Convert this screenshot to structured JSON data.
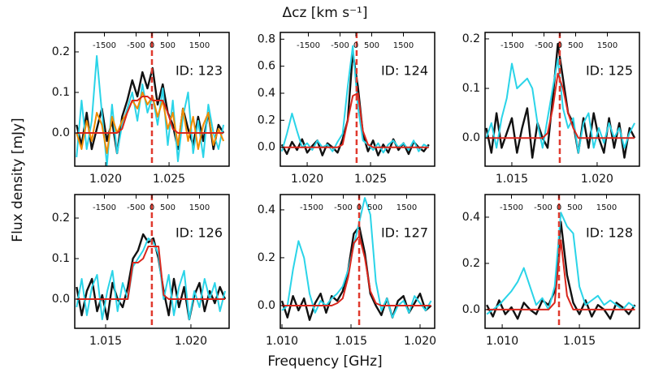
{
  "top_label": "Δcz [km s⁻¹]",
  "y_label": "Flux density [mJy]",
  "x_label": "Frequency [GHz]",
  "chart_data": [
    {
      "type": "line",
      "annotation": "ID: 123",
      "x": [
        1.0177,
        1.0181,
        1.0185,
        1.0189,
        1.0193,
        1.0197,
        1.0201,
        1.0205,
        1.0209,
        1.0213,
        1.0217,
        1.0221,
        1.0225,
        1.0229,
        1.0233,
        1.0237,
        1.0241,
        1.0245,
        1.0249,
        1.0253,
        1.0257,
        1.0261,
        1.0265,
        1.0269,
        1.0273,
        1.0277,
        1.0281,
        1.0285,
        1.0289,
        1.0293
      ],
      "series": [
        {
          "color": "#111111",
          "values": [
            0.02,
            -0.03,
            0.05,
            -0.04,
            0.01,
            0.06,
            -0.02,
            0.03,
            -0.05,
            0.04,
            0.08,
            0.13,
            0.09,
            0.15,
            0.11,
            0.16,
            0.07,
            0.12,
            0.05,
            0.02,
            -0.04,
            0.06,
            0.01,
            -0.03,
            0.04,
            -0.02,
            0.05,
            -0.04,
            0.02,
            0.0
          ]
        },
        {
          "color": "#2ad4e8",
          "values": [
            -0.06,
            0.08,
            -0.04,
            0.03,
            0.19,
            0.05,
            -0.08,
            0.07,
            -0.05,
            0.02,
            0.06,
            0.1,
            0.03,
            0.12,
            0.05,
            0.09,
            0.02,
            0.11,
            -0.03,
            0.08,
            -0.07,
            0.04,
            0.1,
            -0.05,
            0.03,
            -0.06,
            0.07,
            0.0,
            -0.04,
            0.02
          ]
        },
        {
          "color": "#f08c00",
          "values": [
            0.0,
            -0.04,
            0.03,
            -0.02,
            0.05,
            0.02,
            -0.05,
            0.04,
            0.0,
            0.03,
            0.05,
            0.08,
            0.06,
            0.1,
            0.07,
            0.09,
            0.04,
            0.08,
            0.01,
            0.05,
            -0.03,
            0.06,
            -0.02,
            0.04,
            -0.04,
            0.02,
            0.05,
            -0.03,
            0.01,
            -0.02
          ]
        },
        {
          "color": "#d9261c",
          "values": [
            0,
            0,
            0,
            0,
            0,
            0,
            0,
            0,
            0,
            0.01,
            0.05,
            0.08,
            0.08,
            0.09,
            0.09,
            0.08,
            0.08,
            0.08,
            0.05,
            0.01,
            0,
            0,
            0,
            0,
            0,
            0,
            0,
            0,
            0,
            0
          ]
        }
      ],
      "xlim": [
        1.01756,
        1.02974
      ],
      "xticks": [
        {
          "value": 1.02,
          "label": "1.020"
        },
        {
          "value": 1.025,
          "label": "1.025"
        }
      ],
      "ylim": [
        -0.082,
        0.248
      ],
      "yticks": [
        {
          "value": 0,
          "label": "0.0"
        },
        {
          "value": 0.1,
          "label": "0.1"
        },
        {
          "value": 0.2,
          "label": "0.2"
        }
      ],
      "x2lim": [
        -2436,
        2436
      ],
      "x2ticks": [
        -1500,
        -500,
        0,
        500,
        1500
      ],
      "vline": 1.02365
    },
    {
      "type": "line",
      "annotation": "ID: 124",
      "x": [
        1.018,
        1.0184,
        1.0188,
        1.0192,
        1.0196,
        1.02,
        1.0204,
        1.0208,
        1.0212,
        1.0216,
        1.022,
        1.0224,
        1.0228,
        1.0232,
        1.0236,
        1.024,
        1.0244,
        1.0248,
        1.0252,
        1.0256,
        1.026,
        1.0264,
        1.0268,
        1.0272,
        1.0276,
        1.028,
        1.0284,
        1.0288,
        1.0292,
        1.0296
      ],
      "series": [
        {
          "color": "#111111",
          "values": [
            0.02,
            -0.05,
            0.04,
            -0.02,
            0.06,
            -0.04,
            0.01,
            0.05,
            -0.06,
            0.03,
            0.0,
            -0.04,
            0.06,
            0.2,
            0.7,
            0.45,
            0.1,
            -0.03,
            0.05,
            -0.06,
            0.02,
            -0.04,
            0.06,
            -0.02,
            0.03,
            -0.05,
            0.04,
            0.0,
            -0.03,
            0.02
          ]
        },
        {
          "color": "#2ad4e8",
          "values": [
            -0.03,
            0.1,
            0.25,
            0.12,
            0.0,
            0.03,
            -0.02,
            0.05,
            0.0,
            0.02,
            -0.03,
            0.04,
            0.1,
            0.45,
            0.75,
            0.3,
            0.05,
            0.02,
            -0.02,
            0.03,
            -0.04,
            0.02,
            0.05,
            0.0,
            0.03,
            -0.02,
            0.05,
            -0.03,
            0.02,
            0.0
          ]
        },
        {
          "color": "#d9261c",
          "values": [
            0,
            0,
            0,
            0,
            0,
            0,
            0,
            0,
            0,
            0,
            0,
            0,
            0.02,
            0.2,
            0.38,
            0.4,
            0.12,
            0.02,
            0,
            0,
            0,
            0,
            0,
            0,
            0,
            0,
            0,
            0,
            0,
            0
          ]
        }
      ],
      "xlim": [
        1.01788,
        1.03006
      ],
      "xticks": [
        {
          "value": 1.02,
          "label": "1.020"
        },
        {
          "value": 1.025,
          "label": "1.025"
        }
      ],
      "ylim": [
        -0.14,
        0.85
      ],
      "yticks": [
        {
          "value": 0,
          "label": "0.0"
        },
        {
          "value": 0.2,
          "label": "0.2"
        },
        {
          "value": 0.4,
          "label": "0.4"
        },
        {
          "value": 0.6,
          "label": "0.6"
        },
        {
          "value": 0.8,
          "label": "0.8"
        }
      ],
      "x2lim": [
        -2385,
        2487
      ],
      "x2ticks": [
        -1500,
        -500,
        0,
        500,
        1500
      ],
      "vline": 1.0239
    },
    {
      "type": "line",
      "annotation": "ID: 125",
      "x": [
        1.0135,
        1.0138,
        1.0141,
        1.0144,
        1.0147,
        1.015,
        1.0153,
        1.0156,
        1.0159,
        1.0162,
        1.0165,
        1.0168,
        1.0171,
        1.0174,
        1.0177,
        1.018,
        1.0183,
        1.0186,
        1.0189,
        1.0192,
        1.0195,
        1.0198,
        1.0201,
        1.0204,
        1.0207,
        1.021,
        1.0213,
        1.0216,
        1.0219,
        1.0222
      ],
      "series": [
        {
          "color": "#111111",
          "values": [
            0.02,
            -0.03,
            0.05,
            -0.02,
            0.01,
            0.04,
            -0.03,
            0.02,
            0.06,
            -0.04,
            0.03,
            0.0,
            -0.02,
            0.08,
            0.19,
            0.12,
            0.05,
            0.03,
            -0.03,
            0.04,
            -0.02,
            0.05,
            0.0,
            -0.03,
            0.04,
            -0.02,
            0.03,
            -0.04,
            0.02,
            0.0
          ]
        },
        {
          "color": "#2ad4e8",
          "values": [
            0.0,
            0.03,
            -0.02,
            0.04,
            0.08,
            0.15,
            0.1,
            0.11,
            0.12,
            0.1,
            0.03,
            -0.02,
            0.04,
            0.1,
            0.16,
            0.06,
            0.02,
            0.04,
            -0.03,
            0.03,
            0.05,
            -0.02,
            0.02,
            -0.01,
            0.03,
            0.0,
            0.02,
            -0.02,
            0.01,
            0.03
          ]
        },
        {
          "color": "#d9261c",
          "values": [
            0,
            0,
            0,
            0,
            0,
            0,
            0,
            0,
            0,
            0,
            0,
            0,
            0.01,
            0.06,
            0.13,
            0.1,
            0.05,
            0.02,
            0,
            0,
            0,
            0,
            0,
            0,
            0,
            0,
            0,
            0,
            0,
            0
          ]
        }
      ],
      "xlim": [
        1.01343,
        1.02248
      ],
      "xticks": [
        {
          "value": 1.015,
          "label": "1.015"
        },
        {
          "value": 1.02,
          "label": "1.020"
        }
      ],
      "ylim": [
        -0.057,
        0.213
      ],
      "yticks": [
        {
          "value": 0,
          "label": "0.0"
        },
        {
          "value": 0.1,
          "label": "0.1"
        },
        {
          "value": 0.2,
          "label": "0.2"
        }
      ],
      "x2lim": [
        -2359,
        2513
      ],
      "x2ticks": [
        -1500,
        -500,
        0,
        500,
        1500
      ],
      "vline": 1.01781
    },
    {
      "type": "line",
      "annotation": "ID: 126",
      "x": [
        1.0133,
        1.0136,
        1.0139,
        1.0142,
        1.0145,
        1.0148,
        1.0151,
        1.0154,
        1.0157,
        1.016,
        1.0163,
        1.0166,
        1.0169,
        1.0172,
        1.0175,
        1.0178,
        1.0181,
        1.0184,
        1.0187,
        1.019,
        1.0193,
        1.0196,
        1.0199,
        1.0202,
        1.0205,
        1.0208,
        1.0211,
        1.0214,
        1.0217,
        1.022
      ],
      "series": [
        {
          "color": "#111111",
          "values": [
            0.03,
            -0.04,
            0.02,
            0.05,
            -0.03,
            0.01,
            -0.05,
            0.04,
            0.0,
            -0.02,
            0.03,
            0.1,
            0.12,
            0.16,
            0.14,
            0.15,
            0.1,
            0.02,
            -0.04,
            0.05,
            -0.02,
            0.03,
            -0.05,
            0.01,
            0.04,
            -0.03,
            0.02,
            -0.01,
            0.03,
            0.0
          ]
        },
        {
          "color": "#2ad4e8",
          "values": [
            -0.02,
            0.05,
            -0.04,
            0.03,
            0.06,
            -0.05,
            0.02,
            0.07,
            -0.03,
            0.04,
            0.0,
            0.08,
            0.1,
            0.12,
            0.15,
            0.14,
            0.11,
            0.0,
            0.06,
            -0.04,
            0.03,
            0.07,
            -0.05,
            0.02,
            -0.02,
            0.05,
            0.0,
            0.04,
            -0.03,
            0.02
          ]
        },
        {
          "color": "#d9261c",
          "values": [
            0,
            0,
            0,
            0,
            0,
            0,
            0,
            0,
            0,
            0,
            0,
            0.09,
            0.09,
            0.1,
            0.13,
            0.13,
            0.13,
            0.01,
            0,
            0,
            0,
            0,
            0,
            0,
            0,
            0,
            0,
            0,
            0,
            0
          ]
        }
      ],
      "xlim": [
        1.01319,
        1.02224
      ],
      "xticks": [
        {
          "value": 1.015,
          "label": "1.015"
        },
        {
          "value": 1.02,
          "label": "1.020"
        }
      ],
      "ylim": [
        -0.072,
        0.258
      ],
      "yticks": [
        {
          "value": 0,
          "label": "0.0"
        },
        {
          "value": 0.1,
          "label": "0.1"
        },
        {
          "value": 0.2,
          "label": "0.2"
        }
      ],
      "x2lim": [
        -2436,
        2436
      ],
      "x2ticks": [
        -1500,
        -500,
        0,
        500,
        1500
      ],
      "vline": 1.01771
    },
    {
      "type": "line",
      "annotation": "ID: 127",
      "x": [
        1.01,
        1.0104,
        1.0108,
        1.0112,
        1.0116,
        1.012,
        1.0124,
        1.0128,
        1.0132,
        1.0136,
        1.014,
        1.0144,
        1.0148,
        1.0152,
        1.0156,
        1.016,
        1.0164,
        1.0168,
        1.0172,
        1.0176,
        1.018,
        1.0184,
        1.0188,
        1.0192,
        1.0196,
        1.02,
        1.0204,
        1.0208
      ],
      "series": [
        {
          "color": "#111111",
          "values": [
            0.02,
            -0.05,
            0.04,
            -0.02,
            0.03,
            -0.06,
            0.01,
            0.05,
            -0.03,
            0.04,
            0.02,
            0.06,
            0.15,
            0.3,
            0.33,
            0.22,
            0.05,
            0.0,
            -0.04,
            0.03,
            -0.05,
            0.02,
            0.04,
            -0.03,
            0.01,
            0.05,
            -0.02,
            0.0
          ]
        },
        {
          "color": "#2ad4e8",
          "values": [
            -0.02,
            0.0,
            0.15,
            0.27,
            0.2,
            0.05,
            -0.03,
            0.02,
            0.0,
            0.03,
            0.05,
            0.08,
            0.15,
            0.25,
            0.35,
            0.45,
            0.38,
            0.1,
            -0.02,
            0.03,
            -0.05,
            0.0,
            0.02,
            -0.03,
            0.04,
            0.01,
            -0.02,
            0.02
          ]
        },
        {
          "color": "#d9261c",
          "values": [
            0,
            0,
            0,
            0,
            0,
            0,
            0,
            0,
            0,
            0,
            0.01,
            0.03,
            0.12,
            0.26,
            0.29,
            0.2,
            0.06,
            0.01,
            0,
            0,
            0,
            0,
            0,
            0,
            0,
            0,
            0,
            0
          ]
        }
      ],
      "xlim": [
        1.00988,
        1.02106
      ],
      "xticks": [
        {
          "value": 1.01,
          "label": "1.010"
        },
        {
          "value": 1.015,
          "label": "1.015"
        },
        {
          "value": 1.02,
          "label": "1.020"
        }
      ],
      "ylim": [
        -0.095,
        0.464
      ],
      "yticks": [
        {
          "value": 0,
          "label": "0.0"
        },
        {
          "value": 0.2,
          "label": "0.2"
        },
        {
          "value": 0.4,
          "label": "0.4"
        }
      ],
      "x2lim": [
        -2487,
        2385
      ],
      "x2ticks": [
        -1500,
        -500,
        0,
        500,
        1500
      ],
      "vline": 1.01559
    },
    {
      "type": "line",
      "annotation": "ID: 128",
      "x": [
        1.009,
        1.0094,
        1.0098,
        1.0102,
        1.0106,
        1.011,
        1.0114,
        1.0118,
        1.0122,
        1.0126,
        1.013,
        1.0134,
        1.0138,
        1.0142,
        1.0146,
        1.015,
        1.0154,
        1.0158,
        1.0162,
        1.0166,
        1.017,
        1.0174,
        1.0178,
        1.0182,
        1.0186
      ],
      "series": [
        {
          "color": "#111111",
          "values": [
            0.02,
            -0.03,
            0.04,
            -0.02,
            0.01,
            -0.04,
            0.03,
            0.0,
            -0.02,
            0.04,
            0.02,
            0.08,
            0.38,
            0.15,
            0.03,
            -0.02,
            0.04,
            -0.03,
            0.02,
            0.0,
            -0.04,
            0.03,
            0.01,
            -0.02,
            0.02
          ]
        },
        {
          "color": "#2ad4e8",
          "values": [
            -0.02,
            0.0,
            0.02,
            0.05,
            0.08,
            0.12,
            0.18,
            0.1,
            0.02,
            0.05,
            0.0,
            0.1,
            0.42,
            0.36,
            0.33,
            0.1,
            0.02,
            0.04,
            0.06,
            0.02,
            0.04,
            0.02,
            0.0,
            0.03,
            0.01
          ]
        },
        {
          "color": "#d9261c",
          "values": [
            0,
            0,
            0,
            0,
            0,
            0,
            0,
            0,
            0,
            0,
            0,
            0.03,
            0.3,
            0.06,
            0,
            0,
            0,
            0,
            0,
            0,
            0,
            0,
            0,
            0,
            0
          ]
        }
      ],
      "xlim": [
        1.00889,
        1.01889
      ],
      "xticks": [
        {
          "value": 1.01,
          "label": "1.010"
        },
        {
          "value": 1.015,
          "label": "1.015"
        }
      ],
      "ylim": [
        -0.081,
        0.498
      ],
      "yticks": [
        {
          "value": 0,
          "label": "0.0"
        },
        {
          "value": 0.2,
          "label": "0.2"
        },
        {
          "value": 0.4,
          "label": "0.4"
        }
      ],
      "x2lim": [
        -2333,
        2538
      ],
      "x2ticks": [
        -1500,
        -500,
        0,
        500,
        1500
      ],
      "vline": 1.01368
    }
  ]
}
